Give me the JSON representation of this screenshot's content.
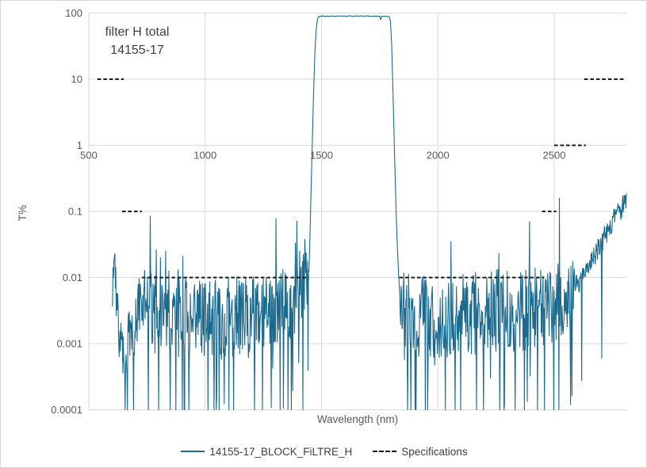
{
  "figure": {
    "title_line1": "filter H total",
    "title_line2": "14155-17",
    "x_axis_title": "Wavelength (nm)",
    "y_axis_title": "T%",
    "legend": [
      {
        "label": "14155-17_BLOCK_FiLTRE_H",
        "swatch": "solid-line",
        "color": "#1b6b90"
      },
      {
        "label": "Specifications",
        "swatch": "dashed-line",
        "color": "#1a1a1a"
      }
    ]
  },
  "colors": {
    "series_line": "#1b6b90",
    "spec_line": "#1a1a1a",
    "gridline": "#d9d9d9",
    "tick_label": "#595959",
    "title_text": "#3f3f3f",
    "background": "#ffffff"
  },
  "chart_data": {
    "type": "line",
    "title": "filter H total 14155-17",
    "xlabel": "Wavelength (nm)",
    "ylabel": "T%",
    "x_scale": "linear",
    "y_scale": "log",
    "xlim": [
      500,
      2810
    ],
    "ylim": [
      0.0001,
      100
    ],
    "x_ticks": [
      500,
      1000,
      1500,
      2000,
      2500
    ],
    "x_tick_labels": [
      "500",
      "1000",
      "1500",
      "2000",
      "2500"
    ],
    "y_ticks": [
      100,
      10,
      1,
      0.1,
      0.01,
      0.001,
      0.0001
    ],
    "y_tick_labels": [
      "100",
      "10",
      "1",
      "0.1",
      "0.01",
      "0.001",
      "0.0001"
    ],
    "grid": true,
    "axis_cross_y": 1,
    "legend_position": "bottom",
    "series": [
      {
        "name": "14155-17_BLOCK_FiLTRE_H",
        "color": "#1b6b90",
        "description": "Bandpass filter spectrum: blocking noise floor near T=0.003% outside band, passband ~92% from 1490-1790 nm, rising leak to ~0.14% at 2810 nm",
        "noise_seed": 7,
        "segments": [
          {
            "kind": "noise",
            "range": [
              602,
              700
            ],
            "step": 2,
            "base_log10": [
              [
                602,
                -2.05
              ],
              [
                612,
                -1.85
              ],
              [
                620,
                -2.45
              ],
              [
                632,
                -2.95
              ],
              [
                645,
                -3.1
              ],
              [
                656,
                -3.5
              ],
              [
                666,
                -2.95
              ],
              [
                700,
                -2.8
              ]
            ],
            "amp": 0.4,
            "dip_prob": 0.03,
            "spike_prob": 0
          },
          {
            "kind": "noise",
            "range": [
              702,
              1444
            ],
            "step": 2,
            "base_log10": [
              [
                702,
                -2.7
              ],
              [
                730,
                -2.5
              ],
              [
                770,
                -2.45
              ],
              [
                830,
                -2.5
              ],
              [
                900,
                -2.6
              ],
              [
                1000,
                -2.65
              ],
              [
                1150,
                -2.6
              ],
              [
                1300,
                -2.6
              ],
              [
                1370,
                -2.45
              ],
              [
                1410,
                -2.3
              ],
              [
                1444,
                -2.15
              ]
            ],
            "amp": 0.62,
            "dip_prob": 0.05,
            "spike_prob": 0.03
          },
          {
            "kind": "path",
            "range": [
              1446,
              1489
            ],
            "base_log10": [
              [
                1446,
                -1.9
              ],
              [
                1451,
                -1.3
              ],
              [
                1456,
                -0.55
              ],
              [
                1461,
                0.15
              ],
              [
                1466,
                0.8
              ],
              [
                1471,
                1.35
              ],
              [
                1476,
                1.7
              ],
              [
                1481,
                1.87
              ],
              [
                1485,
                1.93
              ],
              [
                1489,
                1.95
              ]
            ]
          },
          {
            "kind": "noise",
            "range": [
              1490,
              1788
            ],
            "step": 4,
            "base_log10": [
              [
                1490,
                1.952
              ],
              [
                1650,
                1.956
              ],
              [
                1788,
                1.95
              ]
            ],
            "amp": 0.004,
            "dip_prob": 0,
            "spike_prob": 0
          },
          {
            "kind": "path",
            "range": [
              1790,
              1836
            ],
            "base_log10": [
              [
                1790,
                1.95
              ],
              [
                1796,
                1.88
              ],
              [
                1801,
                1.55
              ],
              [
                1806,
                0.95
              ],
              [
                1811,
                0.25
              ],
              [
                1816,
                -0.45
              ],
              [
                1821,
                -1.05
              ],
              [
                1826,
                -1.55
              ],
              [
                1831,
                -1.95
              ],
              [
                1836,
                -2.25
              ]
            ]
          },
          {
            "kind": "noise",
            "range": [
              1838,
              2588
            ],
            "step": 2,
            "base_log10": [
              [
                1838,
                -2.45
              ],
              [
                1870,
                -2.55
              ],
              [
                1950,
                -2.6
              ],
              [
                2050,
                -2.6
              ],
              [
                2150,
                -2.55
              ],
              [
                2250,
                -2.5
              ],
              [
                2350,
                -2.5
              ],
              [
                2440,
                -2.45
              ],
              [
                2520,
                -2.35
              ],
              [
                2588,
                -2.2
              ]
            ],
            "amp": 0.62,
            "dip_prob": 0.05,
            "spike_prob": 0.03
          },
          {
            "kind": "noise",
            "range": [
              2590,
              2810
            ],
            "step": 2,
            "base_log10": [
              [
                2590,
                -2.15
              ],
              [
                2620,
                -2.0
              ],
              [
                2650,
                -1.82
              ],
              [
                2680,
                -1.62
              ],
              [
                2710,
                -1.42
              ],
              [
                2740,
                -1.22
              ],
              [
                2770,
                -1.04
              ],
              [
                2795,
                -0.92
              ],
              [
                2810,
                -0.85
              ]
            ],
            "amp": 0.16,
            "dip_prob": 0.015,
            "spike_prob": 0
          }
        ],
        "overrides_log10": [
          [
            612,
            -1.64
          ],
          [
            765,
            -1.07
          ],
          [
            791,
            -1.58
          ],
          [
            808,
            -1.7
          ],
          [
            831,
            -1.6
          ],
          [
            1388,
            -1.48
          ],
          [
            1406,
            -1.6
          ],
          [
            1429,
            -1.42
          ],
          [
            1440,
            -1.75
          ],
          [
            1755,
            1.9
          ],
          [
            1875,
            -1.95
          ],
          [
            2162,
            -1.92
          ],
          [
            2258,
            -1.88
          ],
          [
            2452,
            -1.98
          ],
          [
            2510,
            -1.95
          ]
        ],
        "dips_nm": [
          657,
          757,
          903,
          1013,
          1122,
          1247,
          1322,
          1371,
          1421,
          1902,
          1956,
          2032,
          2075,
          2098,
          2196,
          2284,
          2372,
          2458,
          2521
        ],
        "clamp_log10": [
          -4,
          1.962
        ]
      }
    ],
    "specifications": {
      "name": "Specifications",
      "color": "#1a1a1a",
      "style": "dashed",
      "segments": [
        {
          "t": 10,
          "nm": [
            537,
            650
          ]
        },
        {
          "t": 0.1,
          "nm": [
            643,
            728
          ]
        },
        {
          "t": 0.01,
          "nm": [
            728,
            1446
          ]
        },
        {
          "t": 0.01,
          "nm": [
            1834,
            2457
          ]
        },
        {
          "t": 0.1,
          "nm": [
            2447,
            2509
          ]
        },
        {
          "t": 1,
          "nm": [
            2500,
            2636
          ]
        },
        {
          "t": 10,
          "nm": [
            2629,
            2806
          ]
        }
      ]
    }
  }
}
